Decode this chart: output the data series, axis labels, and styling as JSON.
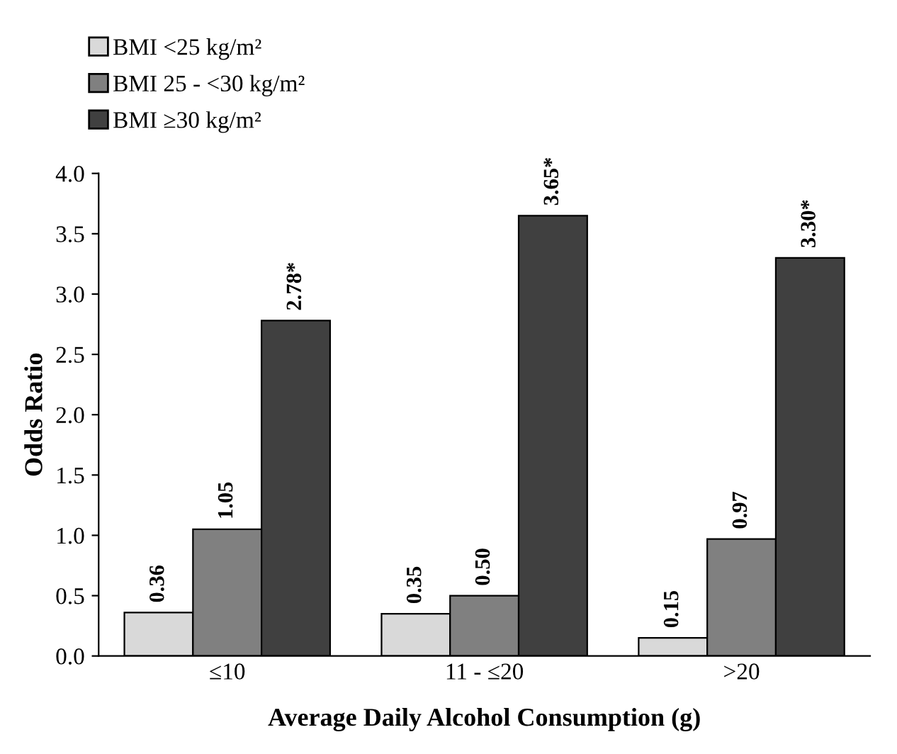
{
  "chart_data": {
    "type": "bar",
    "xlabel": "Average Daily Alcohol Consumption (g)",
    "ylabel": "Odds Ratio",
    "categories": [
      "≤10",
      "11 - ≤20",
      ">20"
    ],
    "series": [
      {
        "name": "BMI <25 kg/m²",
        "color": "#d9d9d9",
        "values": [
          0.36,
          0.35,
          0.15
        ],
        "value_labels": [
          "0.36",
          "0.35",
          "0.15"
        ]
      },
      {
        "name": "BMI 25 - <30 kg/m²",
        "color": "#808080",
        "values": [
          1.05,
          0.5,
          0.97
        ],
        "value_labels": [
          "1.05",
          "0.50",
          "0.97"
        ]
      },
      {
        "name": "BMI ≥30 kg/m²",
        "color": "#404040",
        "values": [
          2.78,
          3.65,
          3.3
        ],
        "value_labels": [
          "2.78*",
          "3.65*",
          "3.30*"
        ]
      }
    ],
    "ylim": [
      0,
      4
    ],
    "yticks": [
      {
        "value": 0,
        "label": "0.0"
      },
      {
        "value": 0.5,
        "label": "0.5"
      },
      {
        "value": 1,
        "label": "1.0"
      },
      {
        "value": 1.5,
        "label": "1.5"
      },
      {
        "value": 2,
        "label": "2.0"
      },
      {
        "value": 2.5,
        "label": "2.5"
      },
      {
        "value": 3,
        "label": "3.0"
      },
      {
        "value": 3.5,
        "label": "3.5"
      },
      {
        "value": 4,
        "label": "4.0"
      }
    ],
    "legend": "top left",
    "grid": false
  }
}
